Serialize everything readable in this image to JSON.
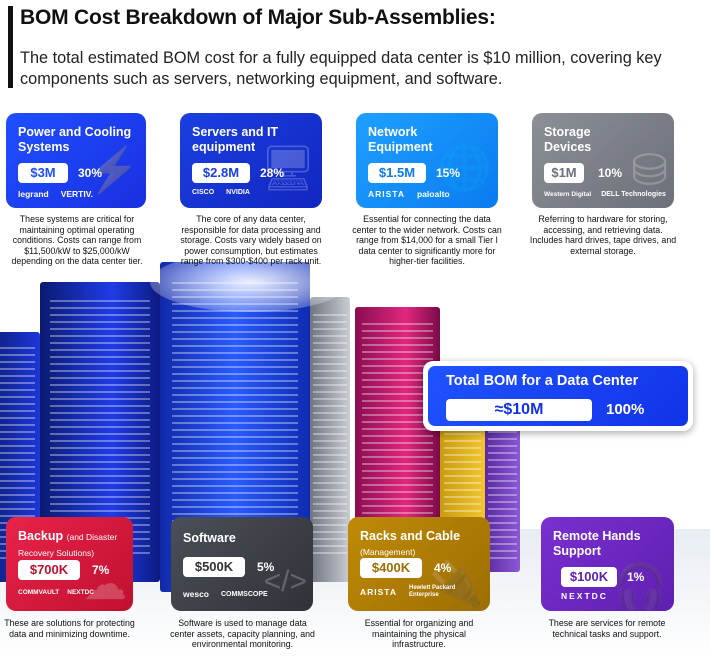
{
  "header": {
    "title": "BOM Cost Breakdown of Major Sub-Assemblies:",
    "subtitle": "The total estimated BOM cost for a fully equipped data center is $10 million, covering key components such as servers, networking equipment, and software."
  },
  "cards": {
    "power": {
      "title": "Power and Cooling Systems",
      "value": "$3M",
      "percent": "30%",
      "logos": [
        "legrand",
        "VERTIV."
      ],
      "icon": "lightning-icon",
      "description": "These systems are critical for maintaining optimal operating conditions. Costs can range from $11,500/kW to $25,000/kW depending on the data center tier.",
      "color": "#1f4fff"
    },
    "servers": {
      "title": "Servers and IT equipment",
      "value": "$2.8M",
      "percent": "28%",
      "logos": [
        "CISCO",
        "NVIDIA"
      ],
      "icon": "monitor-icon",
      "description": "The core of any data center, responsible for data processing and storage. Costs vary widely based on power consumption, but estimates range from $300-$400 per rack unit.",
      "color": "#1a3fe0"
    },
    "network": {
      "title": "Network Equipment",
      "value": "$1.5M",
      "percent": "15%",
      "logos": [
        "ARISTA",
        "paloalto"
      ],
      "icon": "globe-icon",
      "description": "Essential for connecting the data center to the wider network. Costs can range from $14,000 for a small Tier I data center to significantly more for higher-tier facilities.",
      "color": "#1ea0ff"
    },
    "storage": {
      "title": "Storage Devices",
      "value": "$1M",
      "percent": "10%",
      "logos": [
        "Western Digital",
        "DELL Technologies"
      ],
      "icon": "database-icon",
      "description": "Referring to hardware for storing, accessing, and retrieving data. Includes hard drives, tape drives, and external storage.",
      "color": "#8c8f96"
    },
    "backup": {
      "title": "Backup",
      "title_note": "(and Disaster Recovery Solutions)",
      "value": "$700K",
      "percent": "7%",
      "logos": [
        "COMMVAULT",
        "NEXTDC"
      ],
      "icon": "cloud-upload-icon",
      "description": "These are solutions for protecting data and minimizing downtime.",
      "color": "#e8234a"
    },
    "software": {
      "title": "Software",
      "value": "$500K",
      "percent": "5%",
      "logos": [
        "wesco",
        "COMMSCOPE"
      ],
      "icon": "code-gear-icon",
      "description": "Software is used to manage data center assets, capacity planning, and environmental monitoring.",
      "color": "#4b4f57"
    },
    "racks": {
      "title": "Racks and Cable",
      "title_note": "(Management)",
      "value": "$400K",
      "percent": "4%",
      "logos": [
        "ARISTA",
        "Hewlett Packard Enterprise"
      ],
      "icon": "cable-icon",
      "description": "Essential for organizing and maintaining the physical infrastructure.",
      "color": "#c08a06"
    },
    "remote": {
      "title": "Remote Hands Support",
      "value": "$100K",
      "percent": "1%",
      "logos": [
        "NEXTDC"
      ],
      "icon": "headset-icon",
      "description": "These are services for remote technical tasks and support.",
      "color": "#7a2fd0"
    }
  },
  "total": {
    "title": "Total BOM for a Data Center",
    "value": "≈$10M",
    "percent": "100%",
    "color": "#1f54ff"
  }
}
